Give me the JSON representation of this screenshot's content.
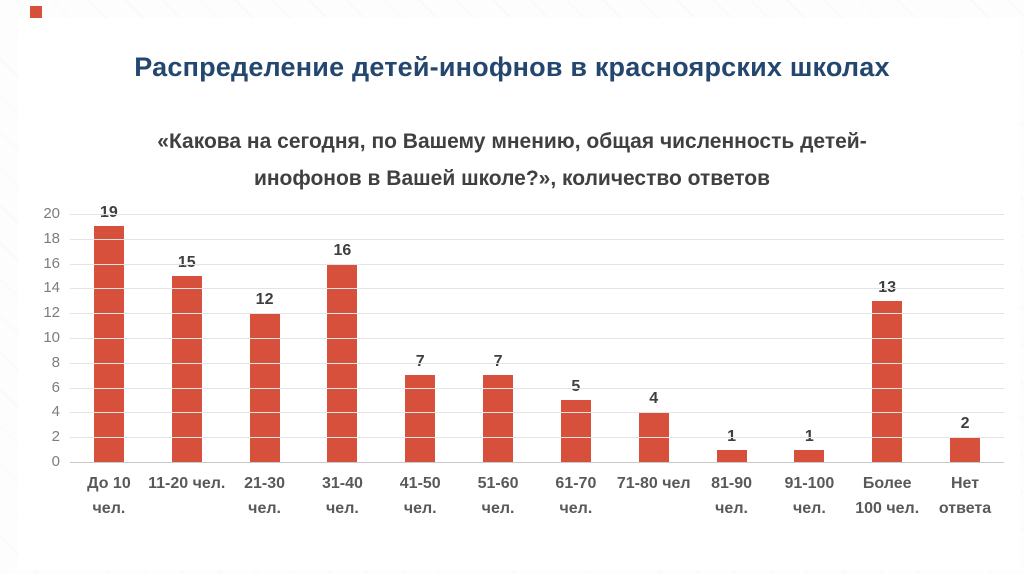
{
  "slide": {
    "title": "Распределение детей-инофнов в красноярских школах",
    "subtitle": "«Какова на сегодня, по Вашему мнению, общая численность детей-инофонов в Вашей школе?», количество ответов"
  },
  "colors": {
    "bar": "#d6503c",
    "title": "#24476f",
    "corner_square": "#d6503c"
  },
  "chart_data": {
    "type": "bar",
    "categories": [
      "До 10 чел.",
      "11-20 чел.",
      "21-30 чел.",
      "31-40 чел.",
      "41-50 чел.",
      "51-60 чел.",
      "61-70 чел.",
      "71-80 чел",
      "81-90 чел.",
      "91-100 чел.",
      "Более 100 чел.",
      "Нет ответа"
    ],
    "values": [
      19,
      15,
      12,
      16,
      7,
      7,
      5,
      4,
      1,
      1,
      13,
      2
    ],
    "title": "«Какова на сегодня, по Вашему мнению, общая численность детей-инофонов в Вашей школе?», количество ответов",
    "xlabel": "",
    "ylabel": "",
    "ylim": [
      0,
      20
    ],
    "ytick_step": 2,
    "grid": true,
    "legend_position": "none",
    "data_labels": true
  }
}
